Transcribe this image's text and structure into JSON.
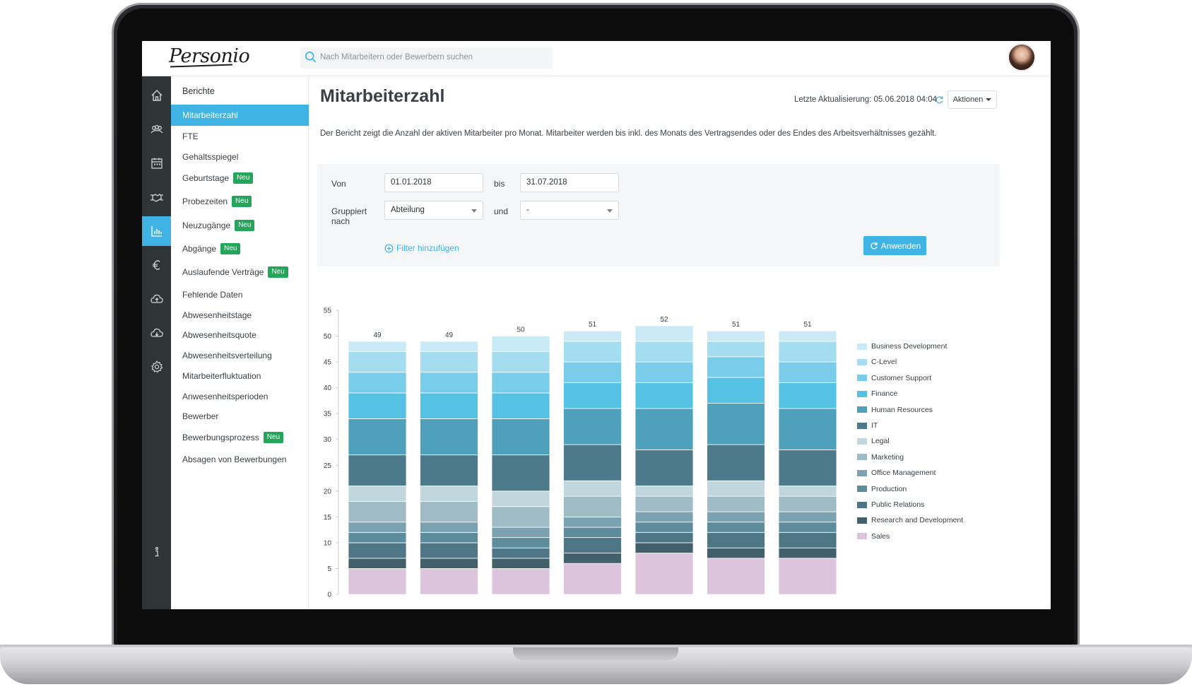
{
  "app": {
    "logo": "Personio",
    "search_placeholder": "Nach Mitarbeitern oder Bewerbern suchen"
  },
  "rail": {
    "items": [
      {
        "icon": "home-icon"
      },
      {
        "icon": "people-icon"
      },
      {
        "icon": "calendar-icon"
      },
      {
        "icon": "handshake-icon"
      },
      {
        "icon": "bar-chart-icon",
        "active": true
      },
      {
        "icon": "euro-icon"
      },
      {
        "icon": "cloud-upload-icon"
      },
      {
        "icon": "cloud-download-icon"
      },
      {
        "icon": "gear-icon"
      },
      {
        "icon": "info-icon"
      }
    ]
  },
  "nav": {
    "title": "Berichte",
    "new_badge": "Neu",
    "items": [
      {
        "label": "Mitarbeiterzahl",
        "active": true,
        "badge": false
      },
      {
        "label": "FTE",
        "badge": false
      },
      {
        "label": "Gehaltsspiegel",
        "badge": false
      },
      {
        "label": "Geburtstage",
        "badge": true
      },
      {
        "label": "Probezeiten",
        "badge": true
      },
      {
        "label": "Neuzugänge",
        "badge": true
      },
      {
        "label": "Abgänge",
        "badge": true
      },
      {
        "label": "Auslaufende Verträge",
        "badge": true
      },
      {
        "label": "Fehlende Daten",
        "badge": false
      },
      {
        "label": "Abwesenheitstage",
        "badge": false
      },
      {
        "label": "Abwesenheitsquote",
        "badge": false
      },
      {
        "label": "Abwesenheitsverteilung",
        "badge": false
      },
      {
        "label": "Mitarbeiterfluktuation",
        "badge": false
      },
      {
        "label": "Anwesenheitsperioden",
        "badge": false
      },
      {
        "label": "Bewerber",
        "badge": false
      },
      {
        "label": "Bewerbungsprozess",
        "badge": true
      },
      {
        "label": "Absagen von Bewerbungen",
        "badge": false
      }
    ]
  },
  "main": {
    "title": "Mitarbeiterzahl",
    "last_update": "Letzte Aktualisierung: 05.06.2018 04:04",
    "actions_label": "Aktionen",
    "description": "Der Bericht zeigt die Anzahl der aktiven Mitarbeiter pro Monat. Mitarbeiter werden bis inkl. des Monats des Vertragsendes oder des Endes des Arbeitsverhältnisses gezählt."
  },
  "filters": {
    "from_label": "Von",
    "from_value": "01.01.2018",
    "to_label": "bis",
    "to_value": "31.07.2018",
    "group_label": "Gruppiert nach",
    "group_value": "Abteilung",
    "and_label": "und",
    "and_value": "-",
    "add_filter_label": "Filter hinzufügen",
    "apply_label": "Anwenden"
  },
  "colors": {
    "accent": "#3fb3e3",
    "rail_bg": "#2f3436",
    "badge": "#23a55a"
  },
  "chart_data": {
    "type": "bar",
    "stacked": true,
    "ylim": [
      0,
      55
    ],
    "yticks": [
      0,
      5,
      10,
      15,
      20,
      25,
      30,
      35,
      40,
      45,
      50,
      55
    ],
    "totals": [
      49,
      49,
      50,
      51,
      52,
      51,
      51
    ],
    "legend_position": "right",
    "series": [
      {
        "name": "Sales",
        "color": "#dcc5dc",
        "values": [
          5,
          5,
          5,
          6,
          8,
          7,
          7
        ]
      },
      {
        "name": "Research and Development",
        "color": "#41606c",
        "values": [
          2,
          2,
          2,
          2,
          2,
          2,
          2
        ]
      },
      {
        "name": "Public Relations",
        "color": "#4e7684",
        "values": [
          3,
          3,
          2,
          3,
          2,
          3,
          3
        ]
      },
      {
        "name": "Production",
        "color": "#5d8d9c",
        "values": [
          2,
          2,
          2,
          2,
          2,
          2,
          2
        ]
      },
      {
        "name": "Office Management",
        "color": "#7aa2b0",
        "values": [
          2,
          2,
          2,
          2,
          2,
          2,
          2
        ]
      },
      {
        "name": "Marketing",
        "color": "#9ebbc6",
        "values": [
          4,
          4,
          4,
          4,
          3,
          3,
          3
        ]
      },
      {
        "name": "Legal",
        "color": "#c2d6dd",
        "values": [
          3,
          3,
          3,
          3,
          2,
          3,
          2
        ]
      },
      {
        "name": "IT",
        "color": "#4d7a8a",
        "values": [
          6,
          6,
          7,
          7,
          7,
          7,
          7
        ]
      },
      {
        "name": "Human Resources",
        "color": "#4fa0ba",
        "values": [
          7,
          7,
          7,
          7,
          8,
          8,
          8
        ]
      },
      {
        "name": "Finance",
        "color": "#55c2e3",
        "values": [
          5,
          5,
          5,
          5,
          5,
          5,
          5
        ]
      },
      {
        "name": "Customer Support",
        "color": "#79ccea",
        "values": [
          4,
          4,
          4,
          4,
          4,
          4,
          4
        ]
      },
      {
        "name": "C-Level",
        "color": "#a4dcf0",
        "values": [
          4,
          4,
          4,
          4,
          4,
          3,
          4
        ]
      },
      {
        "name": "Business Development",
        "color": "#c9eaf6",
        "values": [
          2,
          2,
          3,
          2,
          3,
          2,
          2
        ]
      }
    ]
  }
}
